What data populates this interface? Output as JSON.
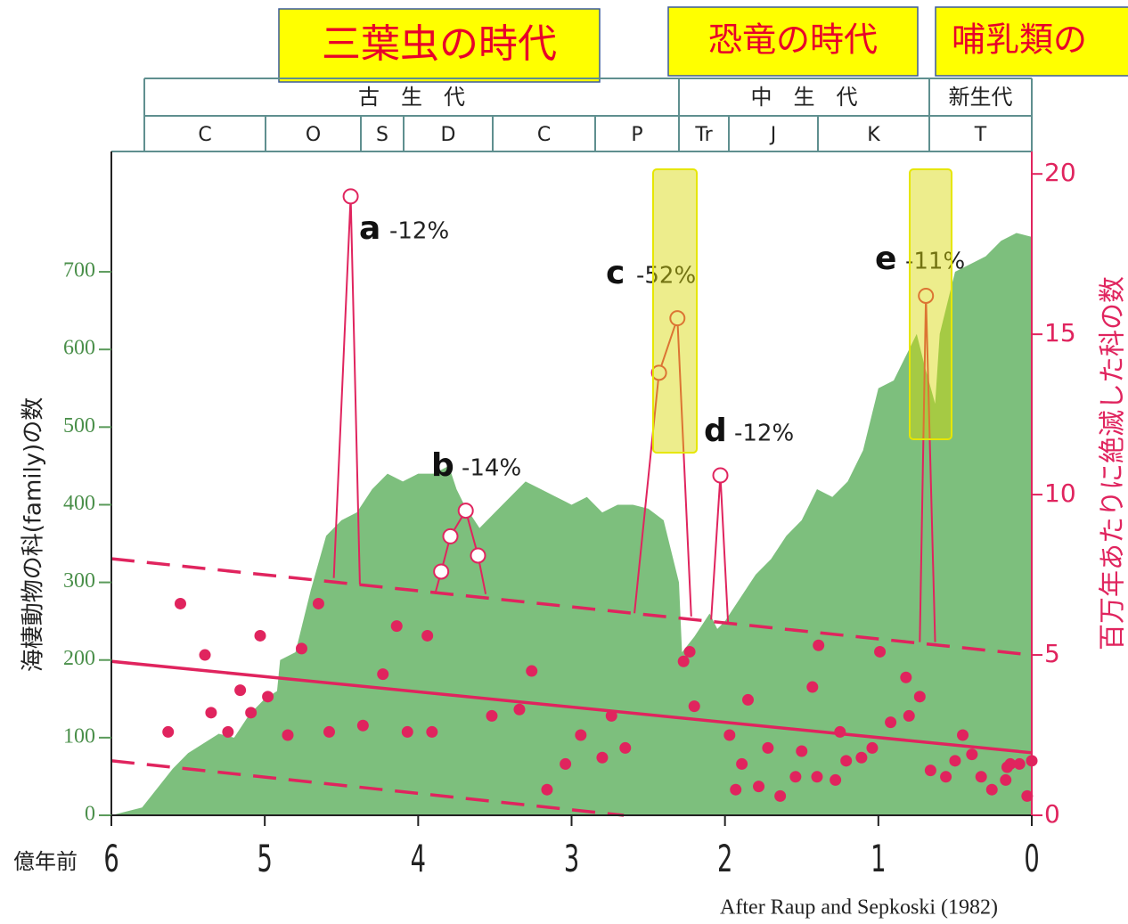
{
  "banners": [
    "三葉虫の時代",
    "恐竜の時代",
    "哺乳類の"
  ],
  "header": {
    "eras": [
      "古　生　代",
      "中　生　代",
      "新生代"
    ],
    "periods": [
      "C",
      "O",
      "S",
      "D",
      "C",
      "P",
      "Tr",
      "J",
      "K",
      "T"
    ]
  },
  "chart_data": {
    "type": "combo",
    "ylabel": "海棲動物の科(family)の数",
    "y2label": "百万年あたりに絶滅した科の数",
    "xlabel": "億年前",
    "source": "After Raup and Sepkoski (1982)",
    "xlim": [
      6,
      0
    ],
    "xticks": [
      6,
      5,
      4,
      3,
      2,
      1,
      0
    ],
    "ylim": [
      0,
      855
    ],
    "yticks": [
      0,
      100,
      200,
      300,
      400,
      500,
      600,
      700
    ],
    "y2lim": [
      0,
      20.7
    ],
    "y2ticks": [
      0,
      5,
      10,
      15,
      20
    ],
    "series": [
      {
        "type": "area",
        "color": "#7dbf7d",
        "x": [
          6,
          5.8,
          5.6,
          5.5,
          5.3,
          5.2,
          5.1,
          5.0,
          4.92,
          4.9,
          4.8,
          4.7,
          4.6,
          4.5,
          4.4,
          4.3,
          4.2,
          4.1,
          4.0,
          3.9,
          3.8,
          3.75,
          3.7,
          3.6,
          3.5,
          3.4,
          3.3,
          3.2,
          3.1,
          3.0,
          2.9,
          2.8,
          2.7,
          2.6,
          2.5,
          2.4,
          2.35,
          2.3,
          2.28,
          2.2,
          2.1,
          2.05,
          2.0,
          1.9,
          1.8,
          1.7,
          1.6,
          1.5,
          1.4,
          1.3,
          1.2,
          1.1,
          1.0,
          0.9,
          0.8,
          0.75,
          0.7,
          0.63,
          0.6,
          0.5,
          0.4,
          0.3,
          0.2,
          0.1,
          0
        ],
        "values": [
          0,
          10,
          60,
          80,
          105,
          100,
          130,
          150,
          160,
          200,
          210,
          290,
          360,
          380,
          390,
          420,
          440,
          430,
          440,
          440,
          450,
          420,
          400,
          370,
          390,
          410,
          430,
          420,
          410,
          400,
          410,
          390,
          400,
          400,
          395,
          380,
          340,
          300,
          210,
          230,
          260,
          240,
          250,
          280,
          310,
          330,
          360,
          380,
          420,
          410,
          430,
          470,
          550,
          560,
          600,
          620,
          580,
          530,
          620,
          700,
          710,
          720,
          740,
          750,
          745
        ]
      },
      {
        "type": "scatter",
        "axis": "y2",
        "color": "#e0245e",
        "x": [
          5.63,
          5.55,
          5.39,
          5.35,
          5.24,
          5.16,
          5.09,
          5.03,
          4.98,
          4.85,
          4.76,
          4.65,
          4.58,
          4.36,
          4.23,
          4.14,
          4.07,
          3.94,
          3.91,
          3.52,
          3.34,
          3.26,
          3.16,
          3.04,
          2.94,
          2.8,
          2.74,
          2.65,
          2.27,
          2.23,
          2.2,
          1.97,
          1.93,
          1.89,
          1.85,
          1.78,
          1.72,
          1.64,
          1.54,
          1.5,
          1.43,
          1.4,
          1.39,
          1.28,
          1.25,
          1.21,
          1.11,
          1.04,
          0.99,
          0.92,
          0.82,
          0.8,
          0.73,
          0.66,
          0.56,
          0.5,
          0.45,
          0.39,
          0.33,
          0.26,
          0.17,
          0.16,
          0.14,
          0.08,
          0.03,
          0
        ],
        "values": [
          2.6,
          6.6,
          5.0,
          3.2,
          2.6,
          3.9,
          3.2,
          5.6,
          3.7,
          2.5,
          5.2,
          6.6,
          2.6,
          2.8,
          4.4,
          5.9,
          2.6,
          5.6,
          2.6,
          3.1,
          3.3,
          4.5,
          0.8,
          1.6,
          2.5,
          1.8,
          3.1,
          2.1,
          4.8,
          5.1,
          3.4,
          2.5,
          0.8,
          1.6,
          3.6,
          0.9,
          2.1,
          0.6,
          1.2,
          2.0,
          4.0,
          1.2,
          5.3,
          1.1,
          2.6,
          1.7,
          1.8,
          2.1,
          5.1,
          2.9,
          4.3,
          3.1,
          3.7,
          1.4,
          1.2,
          1.7,
          2.5,
          1.9,
          1.2,
          0.8,
          1.1,
          1.5,
          1.6,
          1.6,
          0.6,
          1.7
        ]
      },
      {
        "type": "line",
        "axis": "y2",
        "color": "#e0245e",
        "x": [
          6,
          0
        ],
        "values": [
          4.8,
          1.95
        ]
      },
      {
        "type": "line",
        "axis": "y2",
        "color": "#e0245e",
        "dashed": true,
        "x": [
          6,
          0
        ],
        "values": [
          8.0,
          5.0
        ]
      },
      {
        "type": "line",
        "axis": "y2",
        "color": "#e0245e",
        "dashed": true,
        "x": [
          6,
          2.66
        ],
        "values": [
          1.7,
          0
        ]
      },
      {
        "type": "spike",
        "axis": "y2",
        "color": "#e0245e",
        "x": [
          4.55,
          4.44,
          4.38
        ],
        "values": [
          7.4,
          19.3,
          7.2
        ]
      },
      {
        "type": "spike",
        "axis": "y2",
        "color": "#e0245e",
        "x": [
          3.89,
          3.85,
          3.79,
          3.69,
          3.61,
          3.56
        ],
        "values": [
          6.9,
          7.6,
          8.7,
          9.5,
          8.1,
          6.9
        ]
      },
      {
        "type": "spike",
        "axis": "y2",
        "color": "#e0245e",
        "x": [
          2.59,
          2.43,
          2.31,
          2.22
        ],
        "values": [
          6.3,
          13.8,
          15.5,
          6.2
        ]
      },
      {
        "type": "spike",
        "axis": "y2",
        "color": "#e0245e",
        "x": [
          2.09,
          2.03,
          1.98
        ],
        "values": [
          6.1,
          10.6,
          6.0
        ]
      },
      {
        "type": "spike",
        "axis": "y2",
        "color": "#e0245e",
        "x": [
          0.73,
          0.69,
          0.63
        ],
        "values": [
          5.4,
          16.2,
          5.4
        ]
      }
    ],
    "annotations": [
      {
        "letter": "a",
        "text": "-12%"
      },
      {
        "letter": "b",
        "text": "-14%"
      },
      {
        "letter": "c",
        "text": "-52%"
      },
      {
        "letter": "d",
        "text": "-12%"
      },
      {
        "letter": "e",
        "text": "-11%"
      }
    ]
  }
}
